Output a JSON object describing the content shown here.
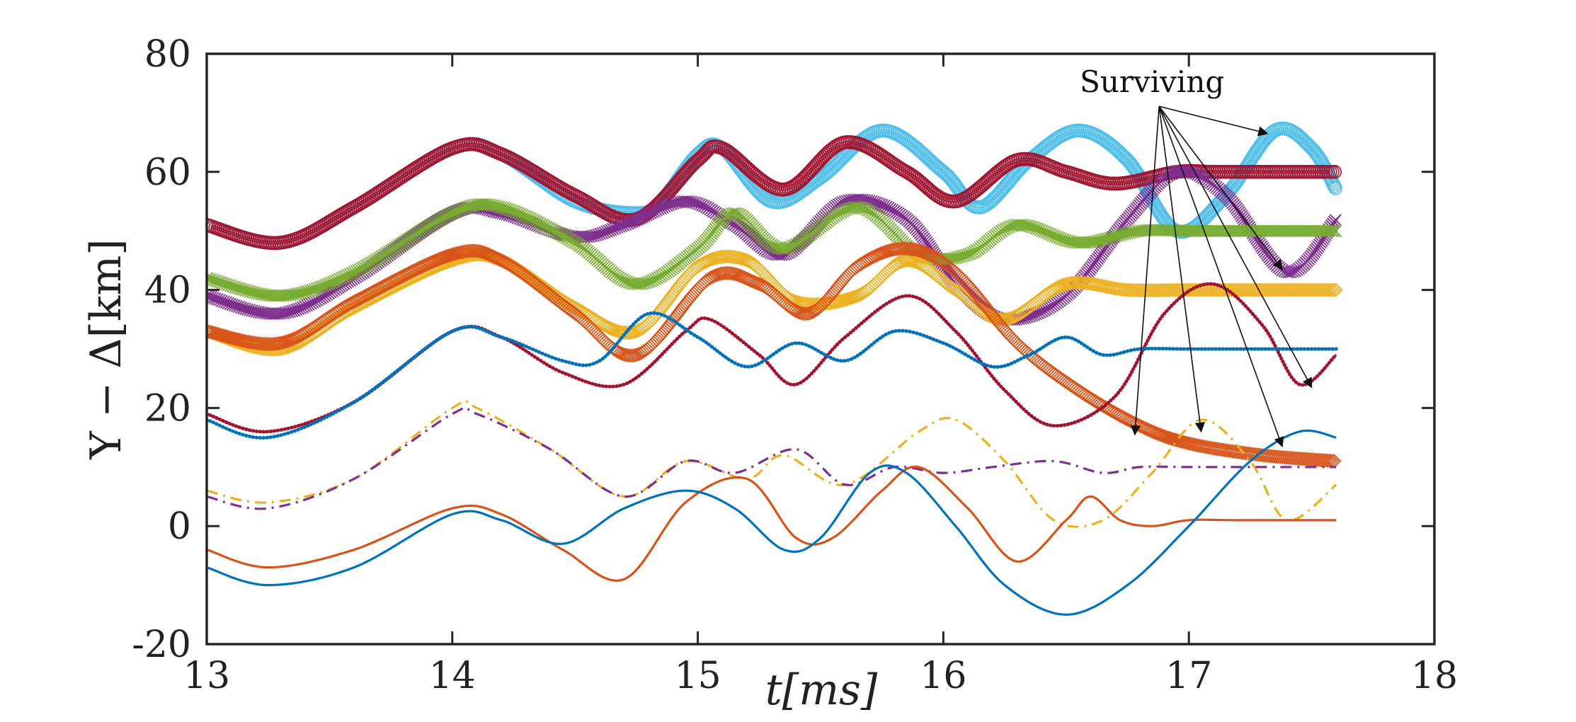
{
  "chart_data": {
    "type": "line",
    "title": "",
    "xlabel": "t[ms]",
    "ylabel": "Y − Δ[km]",
    "xlim": [
      13,
      18
    ],
    "ylim": [
      -20,
      80
    ],
    "xticks": [
      "13",
      "14",
      "15",
      "16",
      "17",
      "18"
    ],
    "yticks": [
      "-20",
      "0",
      "20",
      "40",
      "60",
      "80"
    ],
    "grid": false,
    "annotation": {
      "text": "Surviving",
      "at": [
        16.85,
        73.5
      ]
    },
    "arrow_targets": [
      [
        17.32,
        66.5
      ],
      [
        17.38,
        43.5
      ],
      [
        17.5,
        23.5
      ],
      [
        16.78,
        15.5
      ],
      [
        17.05,
        16.0
      ],
      [
        17.38,
        13.5
      ]
    ],
    "series": [
      {
        "name": "cyan-circles",
        "color": "#4DBEEE",
        "marker": "circle",
        "style": "markers",
        "x": [
          13.0,
          13.3,
          13.6,
          14.0,
          14.2,
          14.5,
          14.75,
          14.85,
          15.0,
          15.1,
          15.3,
          15.5,
          15.75,
          16.0,
          16.15,
          16.35,
          16.55,
          16.75,
          16.95,
          17.15,
          17.35,
          17.5,
          17.6
        ],
        "y": [
          51,
          48,
          54,
          64,
          63,
          55,
          53,
          55,
          63,
          64,
          55,
          59,
          67,
          60,
          54,
          62,
          67,
          62,
          50,
          56,
          67,
          64,
          57
        ]
      },
      {
        "name": "maroon-circles",
        "color": "#A2142F",
        "marker": "circle",
        "style": "markers",
        "x": [
          13.0,
          13.3,
          13.6,
          14.0,
          14.2,
          14.5,
          14.75,
          15.0,
          15.1,
          15.35,
          15.6,
          15.85,
          16.05,
          16.3,
          16.5,
          16.7,
          16.95,
          17.1,
          17.3,
          17.6
        ],
        "y": [
          51,
          48,
          54,
          64,
          63,
          56,
          52,
          62,
          64,
          57,
          65,
          60,
          55,
          62,
          60,
          58,
          60,
          60,
          60,
          60
        ]
      },
      {
        "name": "purple-crosses",
        "color": "#7E2F8E",
        "marker": "cross",
        "style": "markers",
        "x": [
          13.0,
          13.3,
          13.6,
          14.0,
          14.2,
          14.5,
          14.7,
          14.95,
          15.15,
          15.35,
          15.6,
          15.85,
          16.05,
          16.25,
          16.5,
          16.75,
          16.95,
          17.15,
          17.4,
          17.6
        ],
        "y": [
          39,
          36,
          42,
          53,
          53,
          49,
          51,
          55,
          51,
          46,
          55,
          52,
          41,
          35,
          39,
          52,
          60,
          56,
          43,
          52
        ]
      },
      {
        "name": "green-crosses",
        "color": "#77AC30",
        "marker": "cross",
        "style": "markers",
        "x": [
          13.0,
          13.3,
          13.6,
          14.0,
          14.2,
          14.5,
          14.75,
          15.0,
          15.15,
          15.35,
          15.65,
          15.9,
          16.1,
          16.3,
          16.55,
          16.8,
          17.0,
          17.3,
          17.6
        ],
        "y": [
          42,
          39,
          43,
          53,
          54,
          48,
          41,
          47,
          53,
          47,
          54,
          46,
          46,
          51,
          48,
          50,
          50,
          50,
          50
        ]
      },
      {
        "name": "yellow-diamonds",
        "color": "#EDB120",
        "marker": "diamond",
        "style": "markers",
        "x": [
          13.0,
          13.3,
          13.6,
          14.0,
          14.2,
          14.5,
          14.75,
          15.0,
          15.2,
          15.4,
          15.65,
          15.85,
          16.05,
          16.25,
          16.5,
          16.75,
          17.0,
          17.3,
          17.6
        ],
        "y": [
          33,
          30,
          37,
          45,
          45,
          37,
          33,
          44,
          45,
          38,
          39,
          45,
          40,
          35,
          41,
          40,
          40,
          40,
          40
        ]
      },
      {
        "name": "orange-diamonds",
        "color": "#D95319",
        "marker": "diamond",
        "style": "markers",
        "x": [
          13.0,
          13.3,
          13.6,
          14.0,
          14.2,
          14.5,
          14.75,
          15.05,
          15.25,
          15.45,
          15.65,
          15.85,
          16.05,
          16.3,
          16.55,
          16.8,
          17.0,
          17.3,
          17.6
        ],
        "y": [
          33,
          31,
          38,
          46,
          45,
          36,
          29,
          42,
          41,
          36,
          44,
          47,
          43,
          31,
          23,
          17,
          14,
          12,
          11
        ]
      },
      {
        "name": "darkred-dots",
        "color": "#A2142F",
        "marker": "dot",
        "style": "line-dots",
        "x": [
          13.0,
          13.25,
          13.6,
          14.0,
          14.2,
          14.45,
          14.7,
          14.95,
          15.05,
          15.25,
          15.4,
          15.6,
          15.85,
          16.05,
          16.25,
          16.45,
          16.7,
          16.9,
          17.1,
          17.3,
          17.45,
          17.6
        ],
        "y": [
          19,
          16,
          21,
          33,
          32,
          26,
          24,
          33,
          35,
          29,
          24,
          32,
          39,
          33,
          23,
          17,
          22,
          36,
          41,
          34,
          24,
          29
        ]
      },
      {
        "name": "blue-dots",
        "color": "#0072BD",
        "marker": "dot",
        "style": "line-dots",
        "x": [
          13.0,
          13.25,
          13.6,
          14.0,
          14.2,
          14.45,
          14.6,
          14.8,
          15.0,
          15.2,
          15.4,
          15.6,
          15.8,
          16.0,
          16.2,
          16.35,
          16.5,
          16.65,
          16.8,
          17.0,
          17.3,
          17.6
        ],
        "y": [
          18,
          15,
          21,
          33,
          32,
          28,
          28,
          36,
          32,
          27,
          31,
          28,
          33,
          31,
          27,
          29,
          32,
          29,
          30,
          30,
          30,
          30
        ]
      },
      {
        "name": "yellow-dashdot",
        "color": "#EDB120",
        "style": "dash-dot",
        "x": [
          13.0,
          13.25,
          13.6,
          14.0,
          14.1,
          14.4,
          14.7,
          14.95,
          15.2,
          15.35,
          15.6,
          15.9,
          16.05,
          16.25,
          16.45,
          16.65,
          16.85,
          17.05,
          17.25,
          17.4,
          17.6
        ],
        "y": [
          6,
          4,
          8,
          20,
          20,
          13,
          5,
          11,
          8,
          12,
          7,
          16,
          18,
          11,
          1,
          1,
          9,
          18,
          11,
          1,
          7
        ]
      },
      {
        "name": "purple-dashdot",
        "color": "#7E2F8E",
        "style": "dash-dot",
        "x": [
          13.0,
          13.25,
          13.6,
          14.0,
          14.1,
          14.4,
          14.7,
          14.95,
          15.15,
          15.4,
          15.6,
          15.8,
          16.0,
          16.2,
          16.45,
          16.65,
          16.8,
          17.0,
          17.3,
          17.6
        ],
        "y": [
          5,
          3,
          8,
          19,
          19,
          13,
          5,
          11,
          9,
          13,
          7,
          10,
          9,
          10,
          11,
          9,
          10,
          10,
          10,
          10
        ]
      },
      {
        "name": "orange-solid",
        "color": "#D95319",
        "style": "solid",
        "x": [
          13.0,
          13.25,
          13.6,
          14.0,
          14.2,
          14.45,
          14.7,
          14.95,
          15.2,
          15.4,
          15.55,
          15.75,
          15.9,
          16.1,
          16.3,
          16.5,
          16.6,
          16.72,
          16.85,
          17.0,
          17.2,
          17.6
        ],
        "y": [
          -4,
          -7,
          -4,
          3,
          2,
          -4,
          -9,
          4,
          8,
          -2,
          -2,
          6,
          10,
          3,
          -6,
          1,
          5,
          1,
          0,
          1,
          1,
          1
        ]
      },
      {
        "name": "blue-solid",
        "color": "#0072BD",
        "style": "solid",
        "x": [
          13.0,
          13.25,
          13.6,
          14.0,
          14.2,
          14.45,
          14.7,
          14.95,
          15.15,
          15.35,
          15.5,
          15.7,
          15.85,
          16.05,
          16.25,
          16.5,
          16.75,
          17.0,
          17.25,
          17.45,
          17.6
        ],
        "y": [
          -7,
          -10,
          -7,
          2,
          1,
          -3,
          3,
          6,
          3,
          -4,
          -2,
          9,
          9,
          0,
          -10,
          -15,
          -10,
          0,
          11,
          16,
          15
        ]
      }
    ]
  }
}
